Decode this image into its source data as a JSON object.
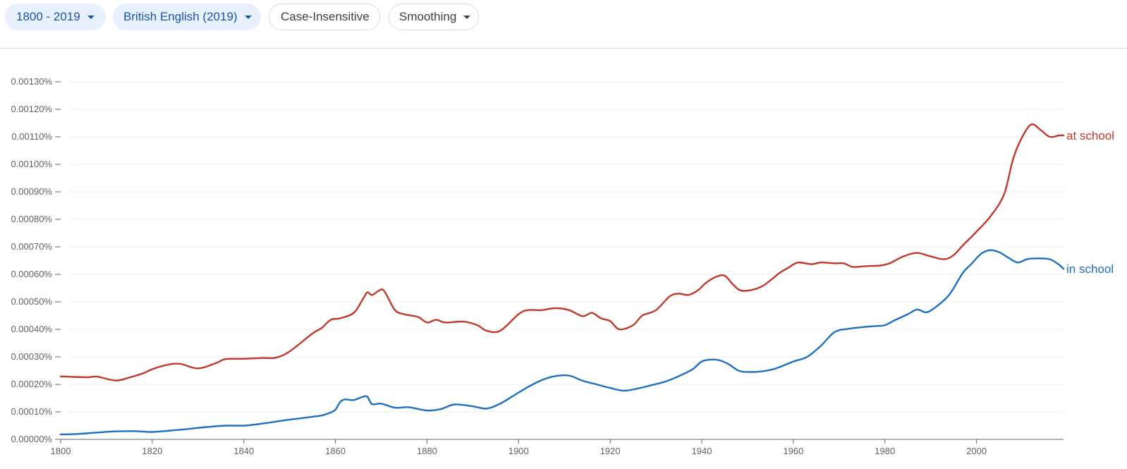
{
  "toolbar": {
    "year_range": "1800 - 2019",
    "corpus": "British English (2019)",
    "case_mode": "Case-Insensitive",
    "smoothing": "Smoothing"
  },
  "chart_data": {
    "type": "line",
    "title": "",
    "xlabel": "",
    "ylabel": "",
    "xlim": [
      1800,
      2019
    ],
    "ylim": [
      0,
      0.0013
    ],
    "x_ticks": [
      1800,
      1820,
      1840,
      1860,
      1880,
      1900,
      1920,
      1940,
      1960,
      1980,
      2000
    ],
    "x_tick_labels": [
      "1800",
      "1820",
      "1840",
      "1860",
      "1880",
      "1900",
      "1920",
      "1940",
      "1960",
      "1980",
      "2000"
    ],
    "y_ticks": [
      0,
      0.0001,
      0.0002,
      0.0003,
      0.0004,
      0.0005,
      0.0006,
      0.0007,
      0.0008,
      0.0009,
      0.001,
      0.0011,
      0.0012,
      0.0013
    ],
    "y_tick_labels": [
      "0.00000%",
      "0.00010%",
      "0.00020%",
      "0.00030%",
      "0.00040%",
      "0.00050%",
      "0.00060%",
      "0.00070%",
      "0.00080%",
      "0.00090%",
      "0.00100%",
      "0.00110%",
      "0.00120%",
      "0.00130%"
    ],
    "grid": true,
    "legend": "inline-right",
    "series": [
      {
        "name": "at school",
        "color": "#c0392b",
        "points": [
          [
            1800,
            0.000229
          ],
          [
            1803,
            0.000227
          ],
          [
            1806,
            0.000226
          ],
          [
            1808,
            0.000228
          ],
          [
            1812,
            0.000214
          ],
          [
            1815,
            0.000225
          ],
          [
            1818,
            0.00024
          ],
          [
            1820,
            0.000255
          ],
          [
            1823,
            0.00027
          ],
          [
            1826,
            0.000275
          ],
          [
            1830,
            0.000258
          ],
          [
            1834,
            0.000278
          ],
          [
            1836,
            0.000292
          ],
          [
            1840,
            0.000293
          ],
          [
            1844,
            0.000296
          ],
          [
            1847,
            0.000297
          ],
          [
            1850,
            0.00032
          ],
          [
            1855,
            0.000385
          ],
          [
            1857,
            0.000405
          ],
          [
            1859,
            0.000435
          ],
          [
            1861,
            0.00044
          ],
          [
            1864,
            0.00046
          ],
          [
            1866,
            0.00051
          ],
          [
            1867,
            0.000535
          ],
          [
            1868,
            0.000525
          ],
          [
            1870,
            0.000545
          ],
          [
            1871,
            0.00053
          ],
          [
            1873,
            0.00047
          ],
          [
            1875,
            0.000455
          ],
          [
            1878,
            0.000445
          ],
          [
            1880,
            0.000425
          ],
          [
            1882,
            0.000435
          ],
          [
            1884,
            0.000425
          ],
          [
            1888,
            0.000428
          ],
          [
            1891,
            0.000415
          ],
          [
            1893,
            0.000395
          ],
          [
            1896,
            0.000395
          ],
          [
            1900,
            0.000455
          ],
          [
            1902,
            0.00047
          ],
          [
            1905,
            0.00047
          ],
          [
            1908,
            0.000477
          ],
          [
            1911,
            0.00047
          ],
          [
            1914,
            0.000448
          ],
          [
            1916,
            0.00046
          ],
          [
            1918,
            0.00044
          ],
          [
            1920,
            0.00043
          ],
          [
            1922,
            0.0004
          ],
          [
            1925,
            0.000415
          ],
          [
            1927,
            0.00045
          ],
          [
            1930,
            0.00047
          ],
          [
            1933,
            0.00052
          ],
          [
            1935,
            0.00053
          ],
          [
            1937,
            0.000525
          ],
          [
            1939,
            0.00054
          ],
          [
            1941,
            0.00057
          ],
          [
            1943,
            0.00059
          ],
          [
            1945,
            0.000595
          ],
          [
            1947,
            0.00056
          ],
          [
            1949,
            0.00054
          ],
          [
            1953,
            0.000555
          ],
          [
            1957,
            0.000605
          ],
          [
            1959,
            0.000625
          ],
          [
            1961,
            0.000643
          ],
          [
            1964,
            0.000637
          ],
          [
            1966,
            0.000643
          ],
          [
            1969,
            0.00064
          ],
          [
            1971,
            0.00064
          ],
          [
            1973,
            0.000627
          ],
          [
            1976,
            0.00063
          ],
          [
            1979,
            0.000632
          ],
          [
            1981,
            0.00064
          ],
          [
            1984,
            0.000665
          ],
          [
            1987,
            0.000678
          ],
          [
            1990,
            0.000665
          ],
          [
            1993,
            0.000655
          ],
          [
            1995,
            0.00067
          ],
          [
            1997,
            0.000705
          ],
          [
            2000,
            0.000755
          ],
          [
            2003,
            0.00081
          ],
          [
            2006,
            0.00089
          ],
          [
            2008,
            0.00102
          ],
          [
            2010,
            0.0011
          ],
          [
            2012,
            0.001145
          ],
          [
            2014,
            0.001125
          ],
          [
            2016,
            0.0011
          ],
          [
            2018,
            0.001105
          ],
          [
            2019,
            0.001105
          ]
        ]
      },
      {
        "name": "in school",
        "color": "#1f6fc0",
        "points": [
          [
            1800,
            1.8e-05
          ],
          [
            1804,
            2e-05
          ],
          [
            1808,
            2.5e-05
          ],
          [
            1812,
            2.9e-05
          ],
          [
            1816,
            3e-05
          ],
          [
            1820,
            2.7e-05
          ],
          [
            1824,
            3.2e-05
          ],
          [
            1828,
            3.8e-05
          ],
          [
            1832,
            4.5e-05
          ],
          [
            1836,
            5e-05
          ],
          [
            1840,
            5e-05
          ],
          [
            1843,
            5.5e-05
          ],
          [
            1846,
            6.2e-05
          ],
          [
            1850,
            7.2e-05
          ],
          [
            1854,
            8e-05
          ],
          [
            1857,
            8.7e-05
          ],
          [
            1859,
            9.8e-05
          ],
          [
            1860,
            0.000108
          ],
          [
            1861,
            0.000135
          ],
          [
            1862,
            0.000145
          ],
          [
            1864,
            0.000143
          ],
          [
            1866,
            0.000155
          ],
          [
            1867,
            0.000155
          ],
          [
            1868,
            0.000128
          ],
          [
            1870,
            0.00013
          ],
          [
            1873,
            0.000115
          ],
          [
            1876,
            0.000117
          ],
          [
            1880,
            0.000105
          ],
          [
            1883,
            0.00011
          ],
          [
            1886,
            0.000127
          ],
          [
            1890,
            0.00012
          ],
          [
            1893,
            0.000112
          ],
          [
            1896,
            0.00013
          ],
          [
            1899,
            0.00016
          ],
          [
            1902,
            0.00019
          ],
          [
            1905,
            0.000215
          ],
          [
            1908,
            0.00023
          ],
          [
            1911,
            0.000232
          ],
          [
            1914,
            0.000213
          ],
          [
            1917,
            0.0002
          ],
          [
            1920,
            0.000187
          ],
          [
            1923,
            0.000177
          ],
          [
            1926,
            0.000185
          ],
          [
            1929,
            0.000197
          ],
          [
            1932,
            0.00021
          ],
          [
            1935,
            0.00023
          ],
          [
            1938,
            0.000255
          ],
          [
            1940,
            0.000283
          ],
          [
            1942,
            0.00029
          ],
          [
            1944,
            0.000287
          ],
          [
            1946,
            0.000272
          ],
          [
            1948,
            0.00025
          ],
          [
            1950,
            0.000245
          ],
          [
            1953,
            0.000247
          ],
          [
            1956,
            0.000257
          ],
          [
            1960,
            0.000283
          ],
          [
            1963,
            0.0003
          ],
          [
            1966,
            0.00034
          ],
          [
            1969,
            0.00039
          ],
          [
            1972,
            0.000402
          ],
          [
            1975,
            0.000408
          ],
          [
            1978,
            0.000412
          ],
          [
            1980,
            0.000415
          ],
          [
            1982,
            0.000432
          ],
          [
            1985,
            0.000455
          ],
          [
            1987,
            0.000472
          ],
          [
            1989,
            0.000462
          ],
          [
            1991,
            0.00048
          ],
          [
            1994,
            0.000525
          ],
          [
            1997,
            0.000605
          ],
          [
            1999,
            0.00064
          ],
          [
            2001,
            0.000675
          ],
          [
            2003,
            0.000688
          ],
          [
            2005,
            0.00068
          ],
          [
            2007,
            0.00066
          ],
          [
            2009,
            0.000643
          ],
          [
            2011,
            0.000655
          ],
          [
            2013,
            0.000658
          ],
          [
            2016,
            0.000655
          ],
          [
            2018,
            0.000635
          ],
          [
            2019,
            0.00062
          ]
        ]
      }
    ]
  }
}
